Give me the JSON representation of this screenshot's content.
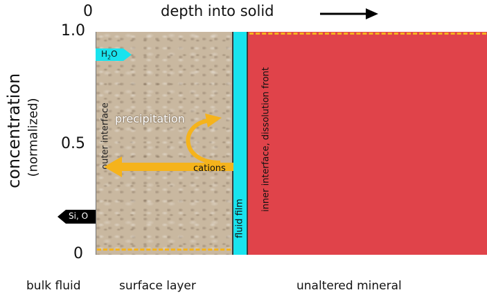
{
  "header": {
    "origin_label": "0",
    "depth_label": "depth into solid"
  },
  "y_axis": {
    "label_main": "concentration",
    "label_sub": "(normalized)",
    "ticks": [
      "1.0",
      "0.5",
      "0"
    ]
  },
  "regions": {
    "bulk_fluid": "bulk fluid",
    "surface_layer": "surface layer",
    "unaltered_mineral": "unaltered mineral"
  },
  "labels": {
    "h2o_base": "H",
    "h2o_sub": "2",
    "h2o_end": "O",
    "si_o": "Si, O",
    "outer_interface": "outer interface",
    "precipitation": "precipitation",
    "cations": "cations",
    "fluid_film": "fluid film",
    "inner_interface": "inner interface, dissolution front"
  },
  "colors": {
    "surface_layer": "#c9b8a0",
    "fluid_film": "#19e3ee",
    "unaltered_mineral": "#e0434a",
    "arrow_orange": "#f5b31c",
    "dashed_line": "#f5b31c",
    "h2o_arrow": "#19e3ee",
    "si_o_arrow": "#000000"
  },
  "icons": {
    "depth_arrow": "right-arrow-icon",
    "h2o_arrow": "right-arrow-icon",
    "si_o_arrow": "left-arrow-icon"
  }
}
